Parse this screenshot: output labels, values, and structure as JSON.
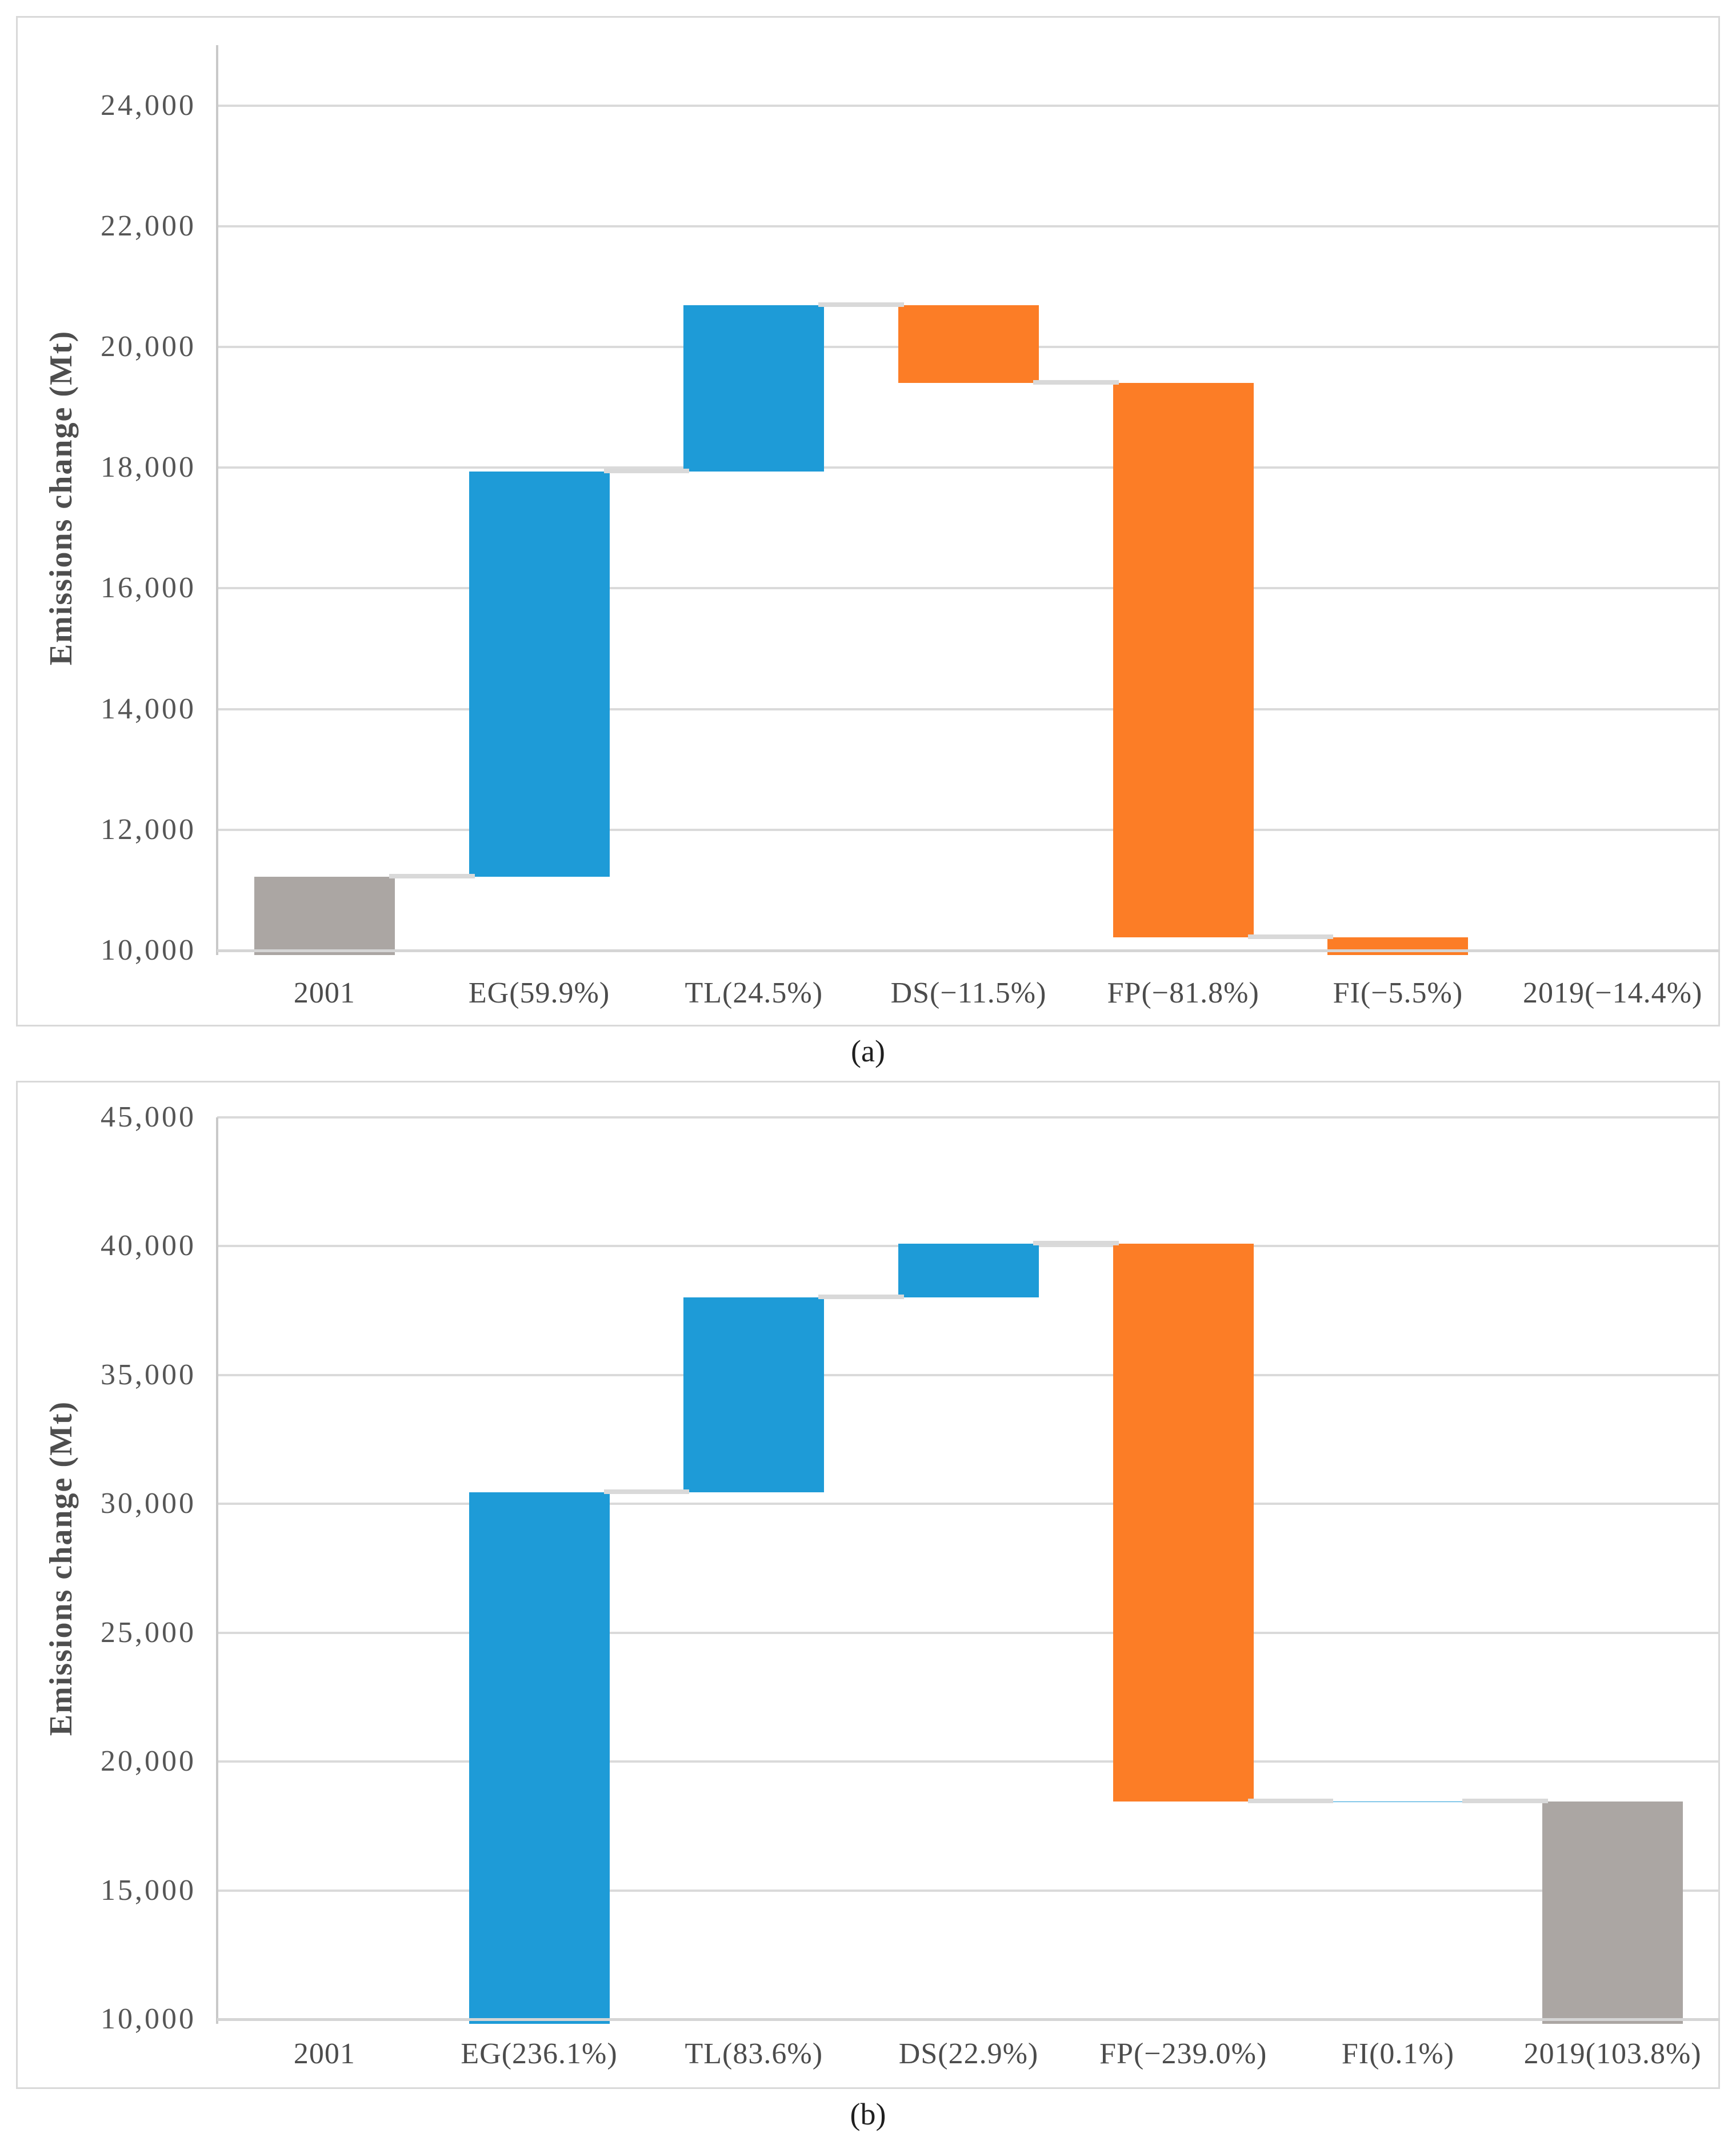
{
  "figure": {
    "caption_a": "(a)",
    "caption_b": "(b)"
  },
  "colors": {
    "increase": "#1E9BD7",
    "decrease": "#FC7D26",
    "total": "#ABA6A3",
    "gridline": "#DADADA",
    "connector": "#D9D9D9",
    "axis_line": "#C9C9C9",
    "tick_text": "#565656",
    "panel_border": "#D9D9D9"
  },
  "chart_data": [
    {
      "id": "a",
      "type": "bar",
      "subtype": "waterfall",
      "caption": "(a)",
      "title": "",
      "xlabel": "",
      "ylabel": "Emissions change (Mt)",
      "ylim": [
        10000,
        25000
      ],
      "ytick_step": 2000,
      "grid": true,
      "legend": "none",
      "yticks": [
        {
          "value": 10000,
          "label": "10,000"
        },
        {
          "value": 12000,
          "label": "12,000"
        },
        {
          "value": 14000,
          "label": "14,000"
        },
        {
          "value": 16000,
          "label": "16,000"
        },
        {
          "value": 18000,
          "label": "18,000"
        },
        {
          "value": 20000,
          "label": "20,000"
        },
        {
          "value": 22000,
          "label": "22,000"
        },
        {
          "value": 24000,
          "label": "24,000"
        }
      ],
      "categories": [
        "2001",
        "EG(59.9%)",
        "TL(24.5%)",
        "DS(−11.5%)",
        "FP(−81.8%)",
        "FI(−5.5%)",
        "2019(−14.4%)"
      ],
      "segments": [
        {
          "category": "2001",
          "role": "total",
          "from": 0,
          "to": 11220
        },
        {
          "category": "EG(59.9%)",
          "role": "increase",
          "from": 11220,
          "to": 17940
        },
        {
          "category": "TL(24.5%)",
          "role": "increase",
          "from": 17940,
          "to": 20690
        },
        {
          "category": "DS(−11.5%)",
          "role": "decrease",
          "from": 20690,
          "to": 19400
        },
        {
          "category": "FP(−81.8%)",
          "role": "decrease",
          "from": 19400,
          "to": 10220
        },
        {
          "category": "FI(−5.5%)",
          "role": "decrease",
          "from": 10220,
          "to": 9600
        },
        {
          "category": "2019(−14.4%)",
          "role": "total",
          "from": 0,
          "to": 9600
        }
      ],
      "connectors": [
        11220,
        17940,
        20690,
        19400,
        10220,
        9600
      ]
    },
    {
      "id": "b",
      "type": "bar",
      "subtype": "waterfall",
      "caption": "(b)",
      "title": "",
      "xlabel": "",
      "ylabel": "Emissions change (Mt)",
      "ylim": [
        10000,
        45000
      ],
      "ytick_step": 5000,
      "grid": true,
      "legend": "none",
      "yticks": [
        {
          "value": 10000,
          "label": "10,000"
        },
        {
          "value": 15000,
          "label": "15,000"
        },
        {
          "value": 20000,
          "label": "20,000"
        },
        {
          "value": 25000,
          "label": "25,000"
        },
        {
          "value": 30000,
          "label": "30,000"
        },
        {
          "value": 35000,
          "label": "35,000"
        },
        {
          "value": 40000,
          "label": "40,000"
        },
        {
          "value": 45000,
          "label": "45,000"
        }
      ],
      "categories": [
        "2001",
        "EG(236.1%)",
        "TL(83.6%)",
        "DS(22.9%)",
        "FP(−239.0%)",
        "FI(0.1%)",
        "2019(103.8%)"
      ],
      "segments": [
        {
          "category": "2001",
          "role": "total",
          "from": 0,
          "to": 9060
        },
        {
          "category": "EG(236.1%)",
          "role": "increase",
          "from": 9060,
          "to": 30450
        },
        {
          "category": "TL(83.6%)",
          "role": "increase",
          "from": 30450,
          "to": 38020
        },
        {
          "category": "DS(22.9%)",
          "role": "increase",
          "from": 38020,
          "to": 40100
        },
        {
          "category": "FP(−239.0%)",
          "role": "decrease",
          "from": 40100,
          "to": 18450
        },
        {
          "category": "FI(0.1%)",
          "role": "increase",
          "from": 18450,
          "to": 18460
        },
        {
          "category": "2019(103.8%)",
          "role": "total",
          "from": 0,
          "to": 18460
        }
      ],
      "connectors": [
        9060,
        30450,
        38020,
        40100,
        18450,
        18460
      ]
    }
  ]
}
